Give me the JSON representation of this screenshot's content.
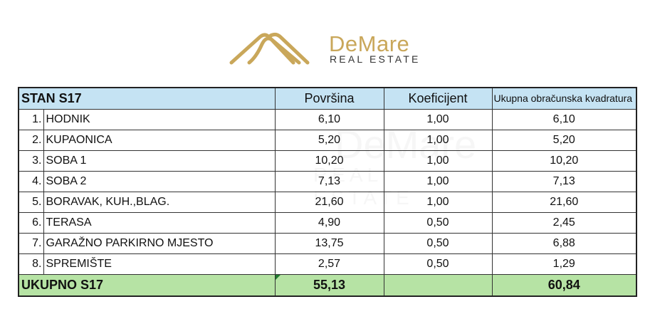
{
  "logo": {
    "brand": "DeMare",
    "sub": "REAL ESTATE",
    "color": "#c9a75a"
  },
  "watermark": {
    "brand": "DeMare",
    "sub": "REAL ESTATE"
  },
  "table": {
    "title": "STAN S17",
    "headers": [
      "Površina",
      "Koeficijent",
      "Ukupna obračunska kvadratura"
    ],
    "rows": [
      {
        "no": "1.",
        "name": "HODNIK",
        "area": "6,10",
        "coef": "1,00",
        "total": "6,10"
      },
      {
        "no": "2.",
        "name": "KUPAONICA",
        "area": "5,20",
        "coef": "1,00",
        "total": "5,20"
      },
      {
        "no": "3.",
        "name": "SOBA 1",
        "area": "10,20",
        "coef": "1,00",
        "total": "10,20"
      },
      {
        "no": "4.",
        "name": "SOBA 2",
        "area": "7,13",
        "coef": "1,00",
        "total": "7,13"
      },
      {
        "no": "5.",
        "name": "BORAVAK, KUH.,BLAG.",
        "area": "21,60",
        "coef": "1,00",
        "total": "21,60"
      },
      {
        "no": "6.",
        "name": "TERASA",
        "area": "4,90",
        "coef": "0,50",
        "total": "2,45"
      },
      {
        "no": "7.",
        "name": "GARAŽNO PARKIRNO MJESTO",
        "area": "13,75",
        "coef": "0,50",
        "total": "6,88"
      },
      {
        "no": "8.",
        "name": "SPREMIŠTE",
        "area": "2,57",
        "coef": "0,50",
        "total": "1,29"
      }
    ],
    "total": {
      "label": "UKUPNO S17",
      "area": "55,13",
      "total": "60,84"
    },
    "colors": {
      "header": "#c5e3f3",
      "total": "#b6e3a4"
    }
  }
}
